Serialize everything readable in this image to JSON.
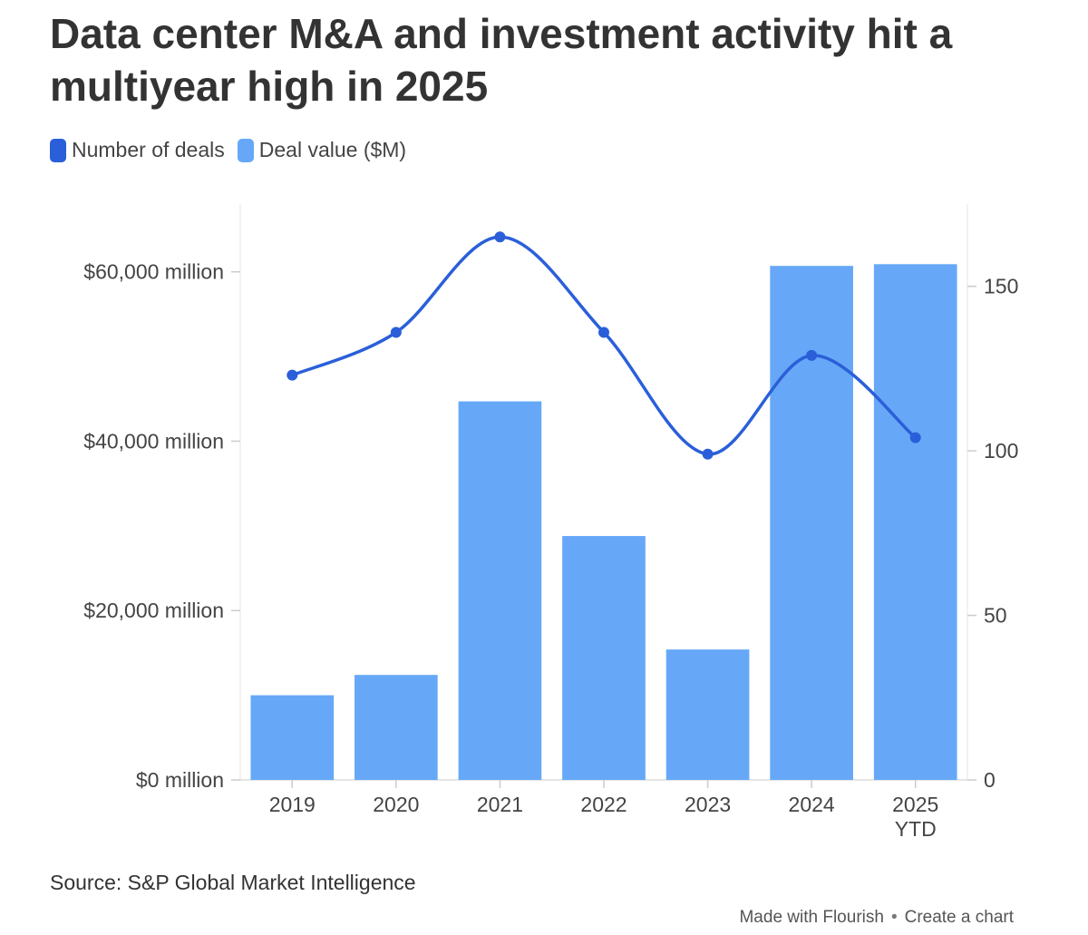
{
  "title": "Data center M&A and investment activity hit a multiyear high in 2025",
  "legend": [
    {
      "label": "Number of deals",
      "color": "#2b5fd9"
    },
    {
      "label": "Deal value ($M)",
      "color": "#66a8f7"
    }
  ],
  "source": "Source: S&P Global Market Intelligence",
  "footer": {
    "made_with": "Made with Flourish",
    "separator": "•",
    "create": "Create a chart"
  },
  "chart_data": {
    "type": "bar",
    "title": "Data center M&A and investment activity hit a multiyear high in 2025",
    "categories": [
      [
        "2019"
      ],
      [
        "2020"
      ],
      [
        "2021"
      ],
      [
        "2022"
      ],
      [
        "2023"
      ],
      [
        "2024"
      ],
      [
        "2025",
        "YTD"
      ]
    ],
    "series": [
      {
        "name": "Deal value ($M)",
        "type": "bar",
        "axis": "left",
        "values": [
          10000,
          12400,
          44700,
          28800,
          15400,
          60700,
          60900
        ]
      },
      {
        "name": "Number of deals",
        "type": "line",
        "axis": "right",
        "values": [
          123,
          136,
          165,
          136,
          99,
          129,
          104
        ]
      }
    ],
    "left_axis": {
      "ylim": [
        0,
        68000
      ],
      "ticks": [
        0,
        20000,
        40000,
        60000
      ],
      "tick_labels": [
        "$0 million",
        "$20,000 million",
        "$40,000 million",
        "$60,000 million"
      ]
    },
    "right_axis": {
      "ylim": [
        0,
        175
      ],
      "ticks": [
        0,
        50,
        100,
        150
      ],
      "tick_labels": [
        "0",
        "50",
        "100",
        "150"
      ]
    },
    "colors": {
      "bar": "#66a8f7",
      "line": "#2b5fd9",
      "grid": "#e6e6e6"
    },
    "xlabel": "",
    "ylabel": "",
    "legend_position": "top-left",
    "grid": true
  }
}
